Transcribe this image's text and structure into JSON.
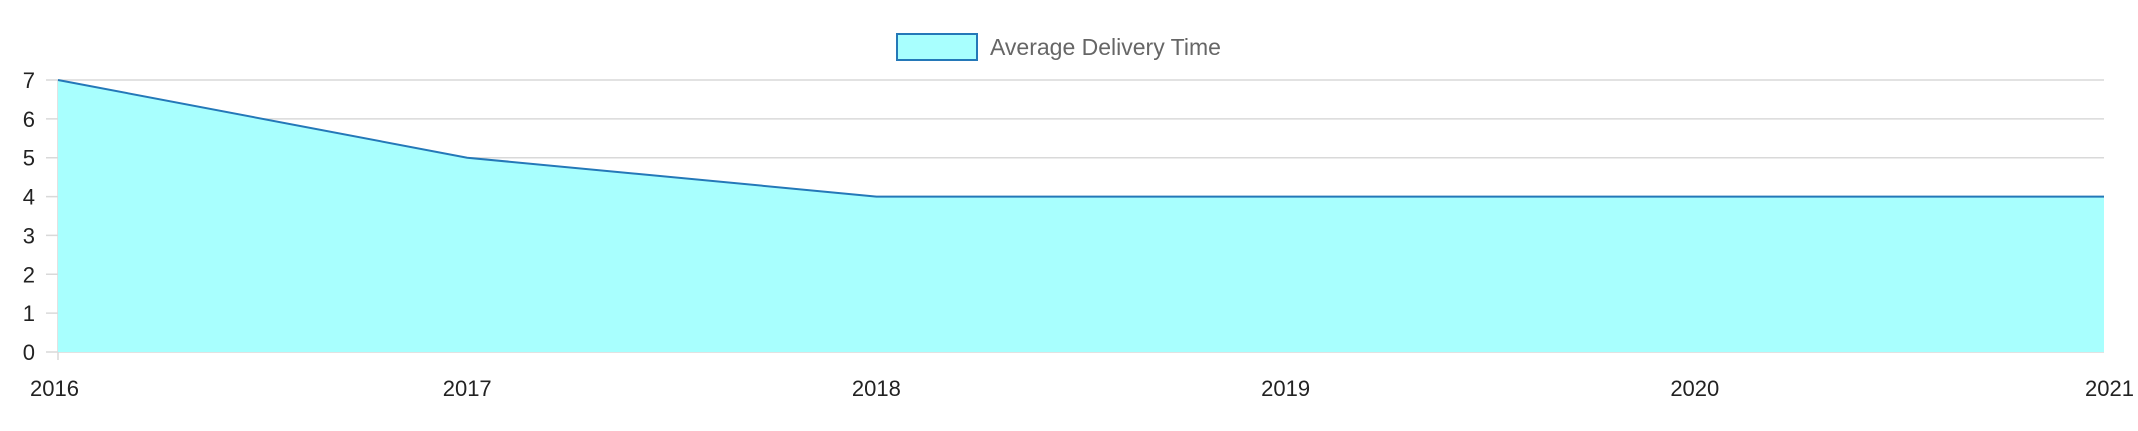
{
  "chart_data": {
    "type": "area",
    "x": [
      "2016",
      "2017",
      "2018",
      "2019",
      "2020",
      "2021"
    ],
    "series": [
      {
        "name": "Average Delivery Time",
        "values": [
          7,
          5,
          4,
          4,
          4,
          4
        ]
      }
    ],
    "title": "",
    "xlabel": "",
    "ylabel": "",
    "ylim": [
      0,
      7
    ],
    "yticks": [
      0,
      1,
      2,
      3,
      4,
      5,
      6,
      7
    ],
    "grid": true,
    "legend_position": "top-center",
    "colors": {
      "fill": "#a8fffe",
      "line": "#2478b8",
      "grid": "#d9d9d9",
      "tick_text": "#222222",
      "legend_text": "#666666"
    }
  }
}
